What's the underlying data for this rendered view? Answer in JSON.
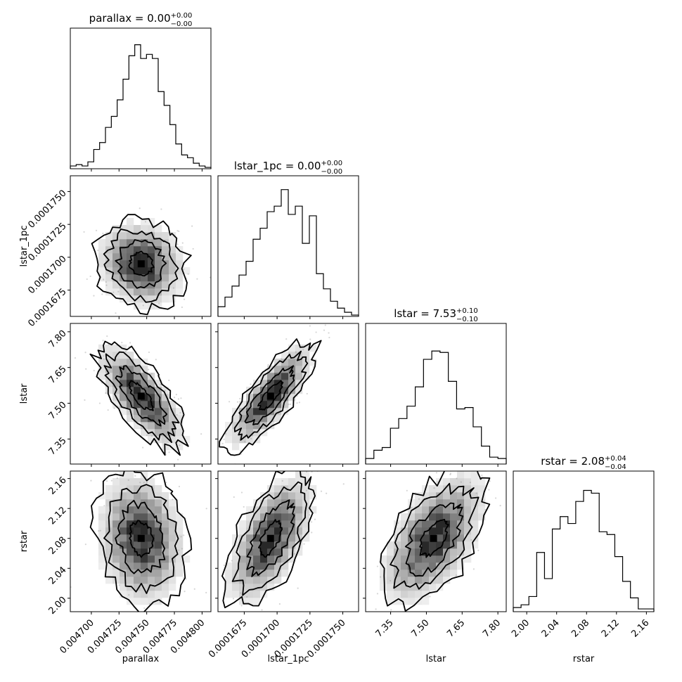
{
  "chart_data": {
    "type": "corner",
    "parameters": [
      {
        "name": "parallax",
        "label": "parallax",
        "title": "parallax = 0.00",
        "title_err_plus": "+0.00",
        "title_err_minus": "−0.00",
        "range": [
          0.004681,
          0.004808
        ],
        "ticks": [
          "0.004700",
          "0.004725",
          "0.004750",
          "0.004775",
          "0.004800"
        ],
        "tick_values": [
          0.0047,
          0.004725,
          0.00475,
          0.004775,
          0.0048
        ],
        "median": 0.004745,
        "sigma": 1.8e-05,
        "hist": [
          0.02,
          0.03,
          0.02,
          0.05,
          0.14,
          0.19,
          0.3,
          0.38,
          0.5,
          0.65,
          0.82,
          0.9,
          0.8,
          0.83,
          0.8,
          0.56,
          0.46,
          0.32,
          0.18,
          0.1,
          0.08,
          0.04,
          0.02,
          0.01
        ]
      },
      {
        "name": "lstar_1pc",
        "label": "lstar_1pc",
        "title": "lstar_1pc = 0.00",
        "title_err_plus": "+0.00",
        "title_err_minus": "−0.00",
        "range": [
          0.0001655,
          0.0001762
        ],
        "ticks": [
          "0.0001675",
          "0.0001700",
          "0.0001725",
          "0.0001750"
        ],
        "tick_values": [
          0.0001675,
          0.00017,
          0.0001725,
          0.000175
        ],
        "median": 0.0001695,
        "sigma": 1.5e-06,
        "hist": [
          0.07,
          0.14,
          0.22,
          0.3,
          0.4,
          0.56,
          0.64,
          0.76,
          0.8,
          0.92,
          0.74,
          0.8,
          0.53,
          0.73,
          0.31,
          0.2,
          0.11,
          0.06,
          0.03,
          0.01
        ]
      },
      {
        "name": "lstar",
        "label": "lstar",
        "title": "lstar = 7.53",
        "title_err_plus": "+0.10",
        "title_err_minus": "−0.10",
        "range": [
          7.245,
          7.835
        ],
        "ticks": [
          "7.35",
          "7.50",
          "7.65",
          "7.80"
        ],
        "tick_values": [
          7.35,
          7.5,
          7.65,
          7.8
        ],
        "median": 7.53,
        "sigma": 0.1,
        "hist": [
          0.04,
          0.1,
          0.12,
          0.26,
          0.33,
          0.42,
          0.56,
          0.76,
          0.82,
          0.81,
          0.6,
          0.4,
          0.41,
          0.27,
          0.13,
          0.05,
          0.04
        ]
      },
      {
        "name": "rstar",
        "label": "rstar",
        "title": "rstar = 2.08",
        "title_err_plus": "+0.04",
        "title_err_minus": "−0.04",
        "range": [
          1.982,
          2.17
        ],
        "ticks": [
          "2.00",
          "2.04",
          "2.08",
          "2.12",
          "2.16"
        ],
        "tick_values": [
          2.0,
          2.04,
          2.08,
          2.12,
          2.16
        ],
        "median": 2.08,
        "sigma": 0.04,
        "hist": [
          0.03,
          0.05,
          0.11,
          0.43,
          0.24,
          0.6,
          0.69,
          0.64,
          0.8,
          0.88,
          0.86,
          0.58,
          0.56,
          0.4,
          0.22,
          0.1,
          0.02,
          0.02
        ]
      }
    ],
    "correlations": {
      "lstar_1pc|parallax": -0.1,
      "lstar|parallax": -0.72,
      "lstar|lstar_1pc": 0.8,
      "rstar|parallax": -0.15,
      "rstar|lstar_1pc": 0.6,
      "rstar|lstar": 0.55
    },
    "contour_levels_sigma": [
      0.5,
      1.0,
      1.5,
      2.0
    ]
  }
}
